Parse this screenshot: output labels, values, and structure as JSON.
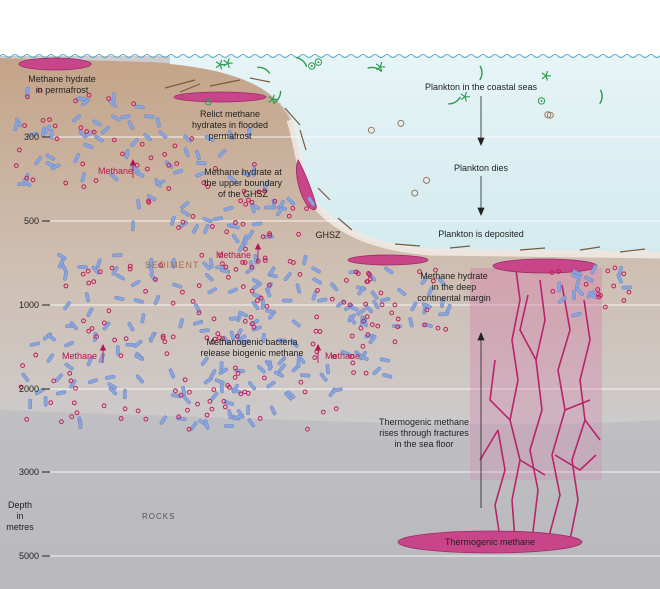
{
  "labels": {
    "permafrost": [
      "Methane hydrate",
      "in permafrost"
    ],
    "relict": [
      "Relict methane",
      "hydrates in flooded",
      "permafrost"
    ],
    "upper_boundary": [
      "Methane hydrate at",
      "the upper boundary",
      "of the GHSZ"
    ],
    "plankton_coastal": "Plankton in the coastal seas",
    "plankton_dies": "Plankton dies",
    "plankton_deposited": "Plankton is deposited",
    "ghsz": "GHSZ",
    "sediment": "SEDIMENT",
    "deep_margin": [
      "Methane hydrate",
      "in the deep",
      "continental margin"
    ],
    "methanogenic": [
      "Methanogenic bacteria",
      "release biogenic methane"
    ],
    "thermogenic_rises": [
      "Thermogenic methane",
      "rises through fractures",
      "in the sea floor"
    ],
    "thermogenic": "Thermogenic methane",
    "rocks": "ROCKS",
    "methane": "Methane",
    "depth_title": [
      "Depth",
      "in",
      "metres"
    ]
  },
  "depth_ticks": [
    "300",
    "500",
    "1000",
    "2000",
    "3000",
    "5000"
  ],
  "colors": {
    "sea": "#dff0f4",
    "sediment": "#c5a48a",
    "rock": "#c8c8cc",
    "hydrate": "#c8458a",
    "methane_dot": "#c01f5c",
    "bacteria": "#8aa4dc",
    "plankton": "#2e9d4e"
  }
}
